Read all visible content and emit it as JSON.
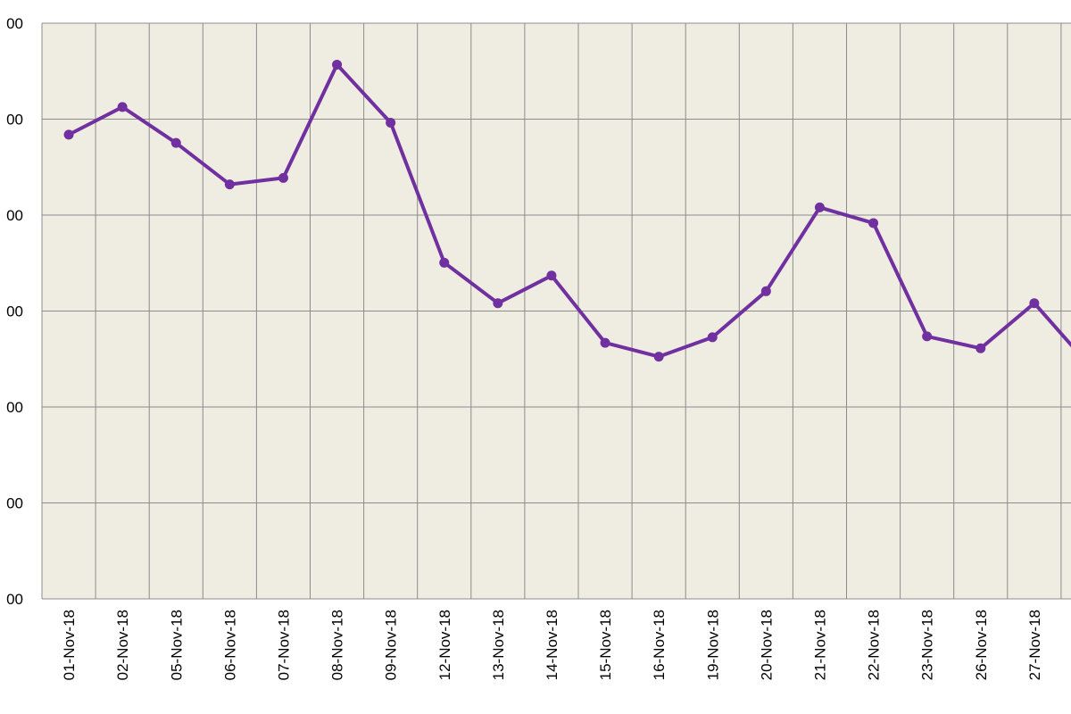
{
  "chart_data": {
    "type": "line",
    "title": "",
    "xlabel": "",
    "ylabel": "",
    "categories": [
      "01-Nov-18",
      "02-Nov-18",
      "05-Nov-18",
      "06-Nov-18",
      "07-Nov-18",
      "08-Nov-18",
      "09-Nov-18",
      "12-Nov-18",
      "13-Nov-18",
      "14-Nov-18",
      "15-Nov-18",
      "16-Nov-18",
      "19-Nov-18",
      "20-Nov-18",
      "21-Nov-18",
      "22-Nov-18",
      "23-Nov-18",
      "26-Nov-18",
      "27-Nov-18",
      ""
    ],
    "y_tick_labels": [
      "00",
      "00",
      "00",
      "00",
      "00",
      "00",
      "00"
    ],
    "series": [
      {
        "values": [
          5.04,
          5.34,
          4.95,
          4.5,
          4.57,
          5.8,
          5.17,
          3.65,
          3.21,
          3.51,
          2.78,
          2.63,
          2.84,
          3.34,
          4.25,
          4.08,
          2.85,
          2.72,
          3.21,
          2.55
        ],
        "color": "#7030a0"
      }
    ],
    "ylim": [
      0,
      6.25
    ],
    "grid": true,
    "legend": "none",
    "colors": {
      "plot_background": "#efece2",
      "grid_line": "#8c8c8c",
      "line": "#7030a0"
    }
  }
}
